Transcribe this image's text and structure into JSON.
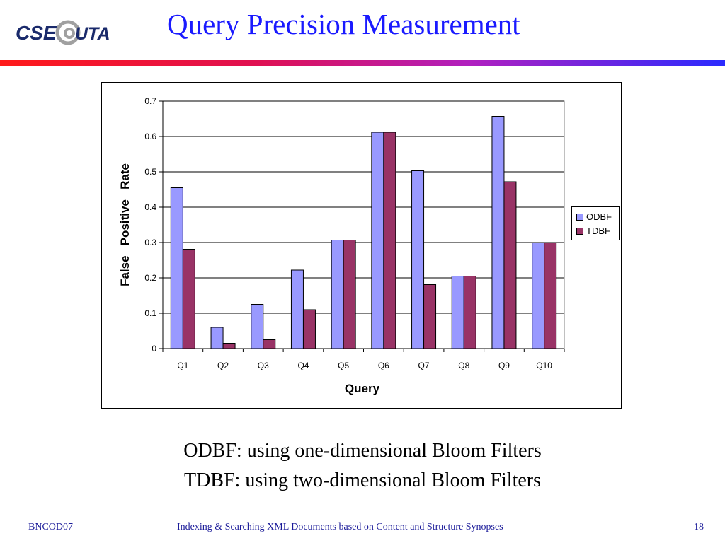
{
  "logo": {
    "text_cse": "CSE",
    "text_uta": "UTA",
    "alt": "CSE@UTA"
  },
  "slide": {
    "title": "Query Precision Measurement"
  },
  "captions": [
    "ODBF: using one-dimensional Bloom Filters",
    "TDBF: using two-dimensional Bloom Filters"
  ],
  "footer": {
    "left": "BNCOD07",
    "center": "Indexing & Searching XML Documents based on Content and Structure Synopses",
    "right": "18"
  },
  "colors": {
    "title": "#1a1aff",
    "odbf": "#9999ff",
    "tdbf": "#993366",
    "footer": "#1a1a99"
  },
  "chart_data": {
    "type": "bar",
    "categories": [
      "Q1",
      "Q2",
      "Q3",
      "Q4",
      "Q5",
      "Q6",
      "Q7",
      "Q8",
      "Q9",
      "Q10"
    ],
    "series": [
      {
        "name": "ODBF",
        "values": [
          0.455,
          0.06,
          0.125,
          0.222,
          0.307,
          0.612,
          0.503,
          0.205,
          0.657,
          0.3
        ]
      },
      {
        "name": "TDBF",
        "values": [
          0.281,
          0.015,
          0.025,
          0.11,
          0.307,
          0.612,
          0.181,
          0.205,
          0.472,
          0.3
        ]
      }
    ],
    "xlabel": "Query",
    "ylabel": "False   Positive   Rate",
    "ylim": [
      0,
      0.7
    ],
    "yticks": [
      "0",
      "0.1",
      "0.2",
      "0.3",
      "0.4",
      "0.5",
      "0.6",
      "0.7"
    ],
    "grid": true,
    "legend": "right"
  }
}
